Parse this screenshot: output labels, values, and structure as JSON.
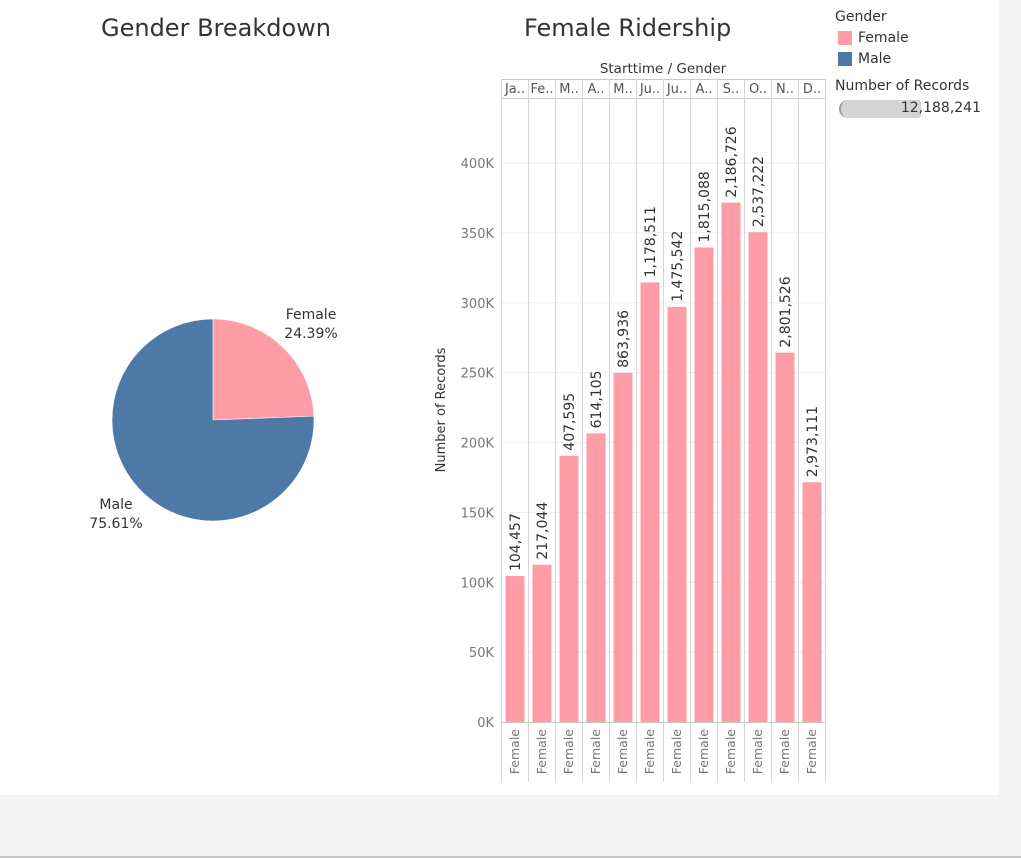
{
  "titles": {
    "pie": "Gender Breakdown",
    "bar": "Female Ridership"
  },
  "colors": {
    "female": "#ff9da7",
    "male": "#4e79a7",
    "axis_text": "#777777",
    "grid": "#eeeeee",
    "border": "#c8c8c8"
  },
  "legend": {
    "gender_title": "Gender",
    "items": [
      {
        "label": "Female",
        "color": "#ff9da7"
      },
      {
        "label": "Male",
        "color": "#4e79a7"
      }
    ],
    "size_title": "Number of Records",
    "size_value": "12,188,241"
  },
  "chart_data": [
    {
      "type": "pie",
      "title": "Gender Breakdown",
      "slices": [
        {
          "label": "Female",
          "percent_label": "24.39%",
          "value": 24.39,
          "color": "#ff9da7"
        },
        {
          "label": "Male",
          "percent_label": "75.61%",
          "value": 75.61,
          "color": "#4e79a7"
        }
      ]
    },
    {
      "type": "bar",
      "title": "Female Ridership",
      "column_header": "Starttime  /  Gender",
      "ylabel": "Number of Records",
      "ylim": [
        0,
        400000
      ],
      "yticks": [
        0,
        50000,
        100000,
        150000,
        200000,
        250000,
        300000,
        350000,
        400000
      ],
      "ytick_labels": [
        "0K",
        "50K",
        "100K",
        "150K",
        "200K",
        "250K",
        "300K",
        "350K",
        "400K"
      ],
      "months": [
        "Ja..",
        "Fe..",
        "M..",
        "A..",
        "M..",
        "Ju..",
        "Ju..",
        "A..",
        "S..",
        "O..",
        "N..",
        "D.."
      ],
      "bottom_label": "Female",
      "values": [
        104457,
        112587,
        190551,
        206510,
        249831,
        314575,
        297031,
        339546,
        371638,
        350496,
        264304,
        171585
      ],
      "data_labels": [
        "104,457",
        "217,044",
        "407,595",
        "614,105",
        "863,936",
        "1,178,511",
        "1,475,542",
        "1,815,088",
        "2,186,726",
        "2,537,222",
        "2,801,526",
        "2,973,111"
      ]
    }
  ]
}
